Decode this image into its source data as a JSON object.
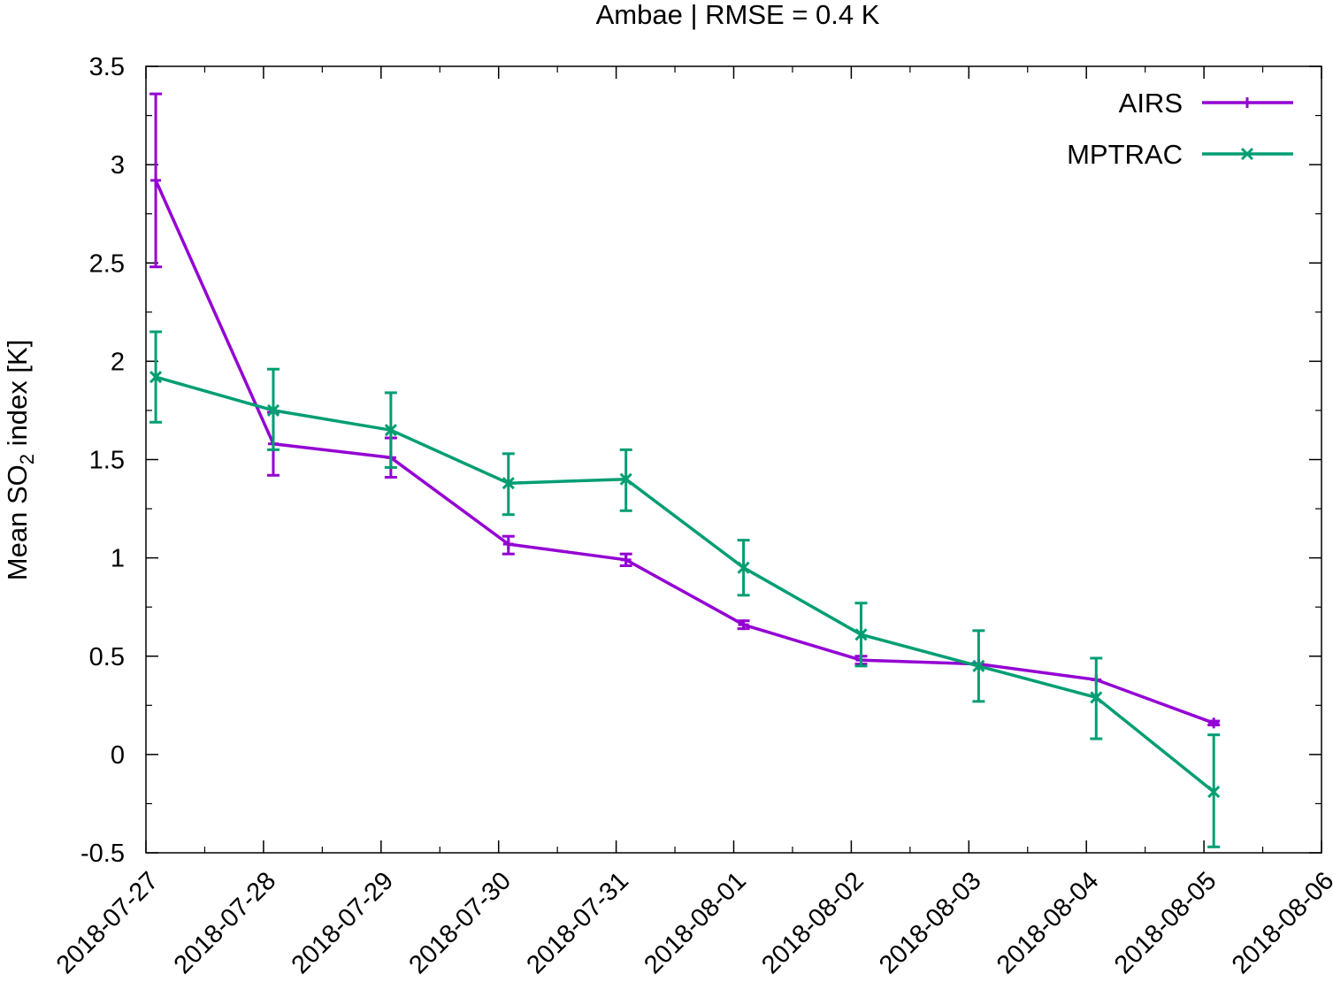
{
  "chart_data": {
    "type": "line",
    "title": "Ambae | RMSE = 0.4 K",
    "ylabel": {
      "prefix": "Mean SO",
      "subscript": "2",
      "suffix": " index [K]"
    },
    "xlabel": "",
    "xlim": [
      "2018-07-27",
      "2018-08-06"
    ],
    "ylim": [
      -0.5,
      3.5
    ],
    "x_ticks": [
      "2018-07-27",
      "2018-07-28",
      "2018-07-29",
      "2018-07-30",
      "2018-07-31",
      "2018-08-01",
      "2018-08-02",
      "2018-08-03",
      "2018-08-04",
      "2018-08-05",
      "2018-08-06"
    ],
    "y_ticks": [
      -0.5,
      0,
      0.5,
      1,
      1.5,
      2,
      2.5,
      3,
      3.5
    ],
    "y_tick_labels": [
      "-0.5",
      "0",
      "0.5",
      "1",
      "1.5",
      "2",
      "2.5",
      "3",
      "3.5"
    ],
    "grid": false,
    "legend_position": "top-right",
    "x": [
      "2018-07-27T02:00",
      "2018-07-28T02:00",
      "2018-07-29T02:00",
      "2018-07-30T02:00",
      "2018-07-31T02:00",
      "2018-08-01T02:00",
      "2018-08-02T02:00",
      "2018-08-03T02:00",
      "2018-08-04T02:00",
      "2018-08-05T02:00"
    ],
    "series": [
      {
        "name": "AIRS",
        "color": "#9400d3",
        "marker": "plus",
        "values": [
          2.92,
          1.58,
          1.51,
          1.07,
          0.99,
          0.66,
          0.48,
          0.46,
          0.38,
          0.16
        ],
        "error_low": [
          2.48,
          1.42,
          1.41,
          1.02,
          0.96,
          0.64,
          0.46,
          0.46,
          0.38,
          0.15
        ],
        "error_high": [
          3.36,
          1.74,
          1.61,
          1.11,
          1.02,
          0.68,
          0.5,
          0.46,
          0.38,
          0.17
        ]
      },
      {
        "name": "MPTRAC",
        "color": "#009e73",
        "marker": "cross",
        "values": [
          1.92,
          1.75,
          1.65,
          1.38,
          1.4,
          0.95,
          0.61,
          0.45,
          0.29,
          -0.19
        ],
        "error_low": [
          1.69,
          1.55,
          1.46,
          1.22,
          1.24,
          0.81,
          0.45,
          0.27,
          0.08,
          -0.47
        ],
        "error_high": [
          2.15,
          1.96,
          1.84,
          1.53,
          1.55,
          1.09,
          0.77,
          0.63,
          0.49,
          0.1
        ]
      }
    ]
  }
}
